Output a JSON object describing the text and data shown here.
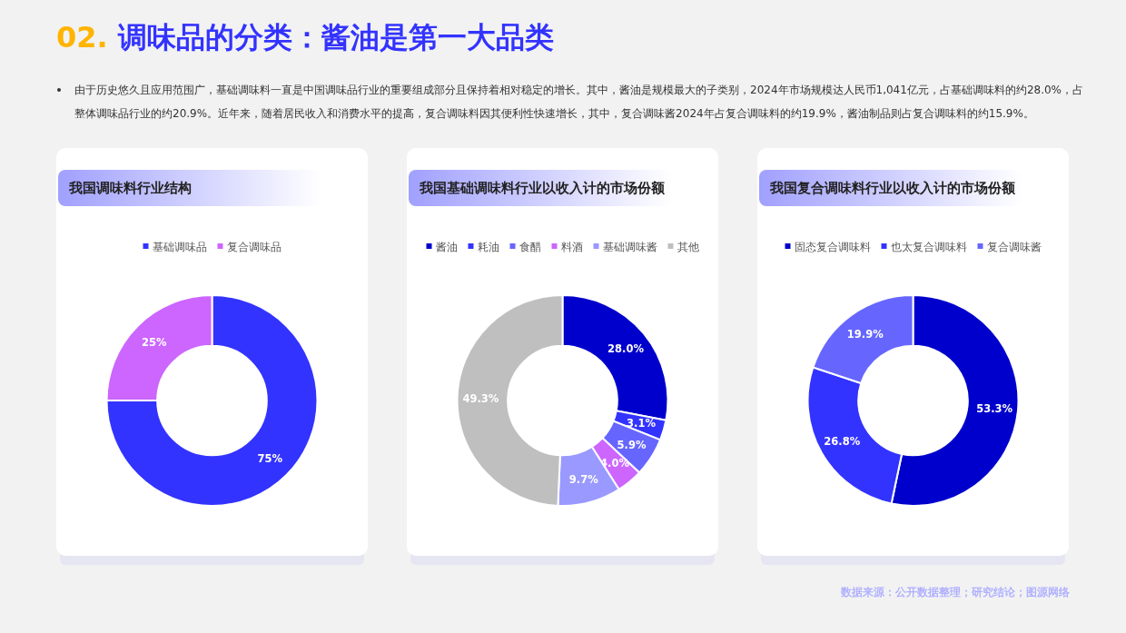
{
  "chart_data": [
    {
      "type": "other",
      "title": "02. 调味品的分类：酱油是第一大品类",
      "annotations": [
        "由于历史悠久且应用范围广，基础调味料一直是中国调味品行业的重要组成部分且保持着相对稳定的增长。其中，酱油是规模最大的子类别，2024年市场规模达人民币1,041亿元，占基础调味料的约28.0%，占整体调味品行业的约20.9%。近年来，随着居民收入和消费水平的提高，复合调味料因其便利性快速增长，其中，复合调味酱2024年占复合调味料的约19.9%，酱油制品则占复合调味料的约15.9%。",
        "数据来源：公开数据整理；研究结论；图源网络"
      ]
    },
    {
      "type": "donut",
      "title": "我国调味料行业结构",
      "legend": "top",
      "categories": [
        "基础调味品",
        "复合调味品"
      ],
      "values": [
        75,
        25
      ],
      "colors": [
        "#3333ff",
        "#cc66ff"
      ],
      "value_labels": [
        "75%",
        "25%"
      ]
    },
    {
      "type": "donut",
      "title": "我国基础调味料行业以收入计的市场份额",
      "legend": "top",
      "categories": [
        "酱油",
        "耗油",
        "食醋",
        "料酒",
        "基础调味酱",
        "其他"
      ],
      "values": [
        28.0,
        3.1,
        5.9,
        4.0,
        9.7,
        49.3
      ],
      "colors": [
        "#0000cc",
        "#3333ff",
        "#6666ff",
        "#cc66ff",
        "#9999ff",
        "#bfbfbf"
      ],
      "value_labels": [
        "28.0%",
        "3.1%",
        "5.9%",
        "4.0%",
        "9.7%",
        "49.3%"
      ]
    },
    {
      "type": "donut",
      "title": "我国复合调味料行业以收入计的市场份额",
      "legend": "top",
      "categories": [
        "固态复合调味料",
        "也太复合调味料",
        "复合调味酱"
      ],
      "values": [
        53.3,
        26.8,
        19.9
      ],
      "colors": [
        "#0000cc",
        "#3333ff",
        "#6666ff"
      ],
      "value_labels": [
        "53.3%",
        "26.8%",
        "19.9%"
      ]
    }
  ]
}
